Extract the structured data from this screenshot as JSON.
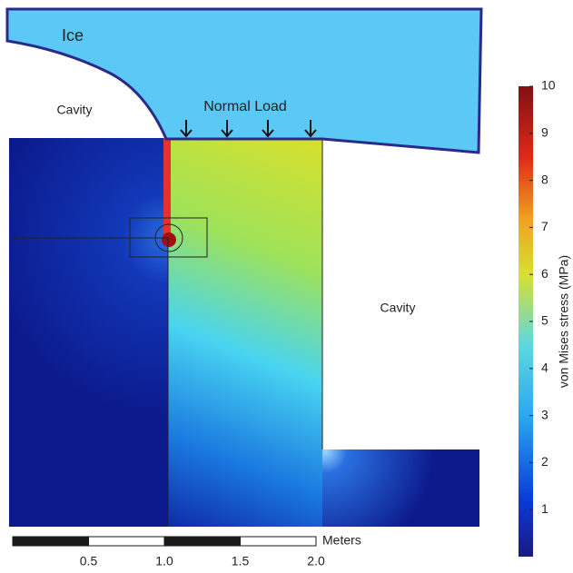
{
  "labels": {
    "ice": "Ice",
    "cavity_left": "Cavity",
    "normal_load": "Normal Load",
    "cavity_right": "Cavity"
  },
  "colorbar": {
    "label": "von Mises stress (MPa)",
    "lim": [
      0,
      10
    ],
    "ticks": [
      1,
      2,
      3,
      4,
      5,
      6,
      7,
      8,
      9,
      10
    ]
  },
  "scale_bar": {
    "unit": "Meters",
    "lim": [
      0,
      2
    ],
    "ticks": [
      0.5,
      {
        "value": 1,
        "label": "1.0"
      },
      1.5,
      {
        "value": 2,
        "label": "2.0"
      }
    ]
  }
}
